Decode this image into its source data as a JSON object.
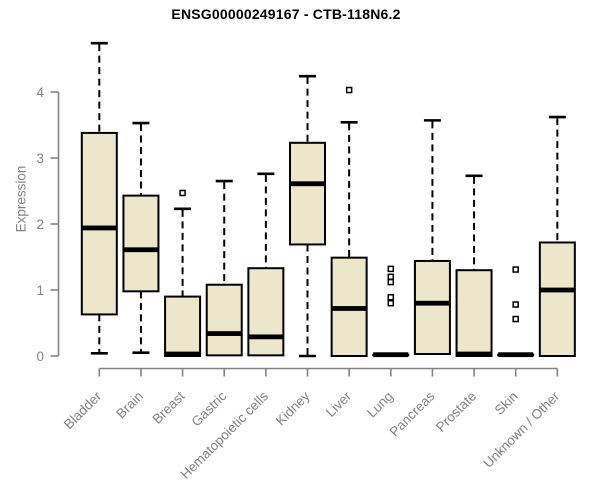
{
  "chart_data": {
    "type": "boxplot",
    "title": "ENSG00000249167 - CTB-118N6.2",
    "xlabel": "",
    "ylabel": "Expression",
    "ylim": [
      0,
      4.9
    ],
    "yticks": [
      0,
      1,
      2,
      3,
      4
    ],
    "grid": false,
    "legend": "none",
    "background": "#FFFFFF",
    "axis_color": "#828282",
    "box_fill": "#ECE7CB",
    "box_stroke": "#000000",
    "median_color": "#000000",
    "outlier_style": "open-square",
    "categories": [
      "Bladder",
      "Brain",
      "Breast",
      "Gastric",
      "Hematopoietic cells",
      "Kidney",
      "Liver",
      "Lung",
      "Pancreas",
      "Prostate",
      "Skin",
      "Unknown / Other"
    ],
    "boxes": [
      {
        "category": "Bladder",
        "whisker_low": 0.04,
        "q1": 0.63,
        "median": 1.94,
        "q3": 3.38,
        "whisker_high": 4.74,
        "outliers": []
      },
      {
        "category": "Brain",
        "whisker_low": 0.05,
        "q1": 0.98,
        "median": 1.61,
        "q3": 2.43,
        "whisker_high": 3.53,
        "outliers": []
      },
      {
        "category": "Breast",
        "whisker_low": 0.0,
        "q1": 0.0,
        "median": 0.03,
        "q3": 0.9,
        "whisker_high": 2.23,
        "outliers": [
          2.47
        ]
      },
      {
        "category": "Gastric",
        "whisker_low": 0.01,
        "q1": 0.01,
        "median": 0.34,
        "q3": 1.08,
        "whisker_high": 2.65,
        "outliers": []
      },
      {
        "category": "Hematopoietic cells",
        "whisker_low": 0.0,
        "q1": 0.01,
        "median": 0.29,
        "q3": 1.33,
        "whisker_high": 2.76,
        "outliers": []
      },
      {
        "category": "Kidney",
        "whisker_low": 0.0,
        "q1": 1.69,
        "median": 2.61,
        "q3": 3.23,
        "whisker_high": 4.24,
        "outliers": []
      },
      {
        "category": "Liver",
        "whisker_low": 0.0,
        "q1": 0.0,
        "median": 0.72,
        "q3": 1.49,
        "whisker_high": 3.54,
        "outliers": [
          4.03
        ]
      },
      {
        "category": "Lung",
        "whisker_low": 0.02,
        "q1": 0.02,
        "median": 0.02,
        "q3": 0.02,
        "whisker_high": 0.02,
        "outliers": [
          1.32,
          1.2,
          1.12,
          0.89,
          0.8
        ]
      },
      {
        "category": "Pancreas",
        "whisker_low": 0.03,
        "q1": 0.03,
        "median": 0.8,
        "q3": 1.44,
        "whisker_high": 3.57,
        "outliers": []
      },
      {
        "category": "Prostate",
        "whisker_low": 0.0,
        "q1": 0.0,
        "median": 0.03,
        "q3": 1.3,
        "whisker_high": 2.73,
        "outliers": []
      },
      {
        "category": "Skin",
        "whisker_low": 0.02,
        "q1": 0.02,
        "median": 0.02,
        "q3": 0.02,
        "whisker_high": 0.02,
        "outliers": [
          1.31,
          0.78,
          0.56
        ]
      },
      {
        "category": "Unknown / Other",
        "whisker_low": 0.0,
        "q1": 0.0,
        "median": 1.0,
        "q3": 1.72,
        "whisker_high": 3.62,
        "outliers": []
      }
    ]
  }
}
